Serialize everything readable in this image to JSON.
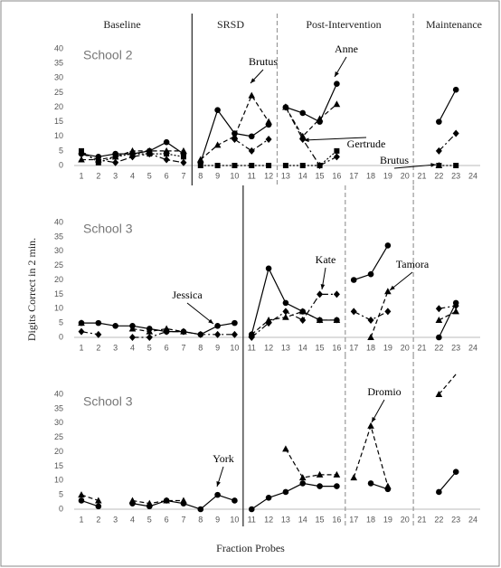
{
  "phase_labels": [
    "Baseline",
    "SRSD",
    "Post-Intervention",
    "Maintenance"
  ],
  "ylabel": "Digits Correct in 2 min.",
  "xlabel": "Fraction Probes",
  "chart_data": [
    {
      "type": "line",
      "title": "School 2",
      "x": [
        1,
        2,
        3,
        4,
        5,
        6,
        7,
        8,
        9,
        10,
        11,
        12,
        13,
        14,
        15,
        16,
        17,
        18,
        19,
        20,
        21,
        22,
        23,
        24
      ],
      "ylim": [
        0,
        40
      ],
      "yticks": [
        0,
        5,
        10,
        15,
        20,
        25,
        30,
        35,
        40
      ],
      "phase_lines": [
        7.5,
        12.5,
        20.5
      ],
      "annotations": [
        "Brutus",
        "Anne",
        "Gertrude",
        "Brutus"
      ],
      "series": [
        {
          "marker": "circle",
          "dash": "solid",
          "color": "#000",
          "values": [
            4,
            3,
            4,
            4,
            5,
            8,
            4,
            1,
            19,
            11,
            10,
            14,
            20,
            18,
            15,
            28,
            null,
            null,
            null,
            null,
            null,
            15,
            26,
            null
          ]
        },
        {
          "marker": "triangle",
          "dash": "dashed",
          "color": "#000",
          "values": [
            2,
            2,
            3,
            5,
            5,
            5,
            5,
            2,
            7,
            10,
            24,
            15,
            20,
            10,
            16,
            21,
            null,
            null,
            null,
            null,
            null,
            0,
            null,
            null
          ]
        },
        {
          "marker": "diamond",
          "dash": "dashdot",
          "color": "#000",
          "values": [
            4,
            2,
            1,
            3,
            4,
            2,
            1,
            null,
            null,
            9,
            5,
            9,
            20,
            9,
            0,
            3,
            null,
            null,
            null,
            null,
            null,
            5,
            11,
            null
          ]
        },
        {
          "marker": "square",
          "dash": "dotted",
          "color": "#000",
          "values": [
            5,
            1,
            3,
            4,
            4,
            4,
            3,
            0,
            0,
            0,
            0,
            0,
            0,
            0,
            0,
            5,
            null,
            null,
            null,
            null,
            null,
            0,
            0,
            null
          ]
        }
      ]
    },
    {
      "type": "line",
      "title": "School 3",
      "x": [
        1,
        2,
        3,
        4,
        5,
        6,
        7,
        8,
        9,
        10,
        11,
        12,
        13,
        14,
        15,
        16,
        17,
        18,
        19,
        20,
        21,
        22,
        23,
        24
      ],
      "ylim": [
        0,
        40
      ],
      "yticks": [
        0,
        5,
        10,
        15,
        20,
        25,
        30,
        35,
        40
      ],
      "phase_lines": [
        10.5,
        16.5,
        20.5
      ],
      "annotations": [
        "Jessica",
        "Kate",
        "Tamora"
      ],
      "series": [
        {
          "marker": "circle",
          "dash": "solid",
          "color": "#000",
          "values": [
            5,
            5,
            4,
            4,
            3,
            2,
            2,
            1,
            4,
            5,
            1,
            24,
            12,
            9,
            6,
            6,
            20,
            22,
            32,
            null,
            null,
            0,
            12,
            null
          ]
        },
        {
          "marker": "triangle",
          "dash": "dashed",
          "color": "#000",
          "values": [
            5,
            null,
            null,
            3,
            2,
            3,
            2,
            null,
            null,
            null,
            1,
            6,
            7,
            9,
            6,
            6,
            null,
            0,
            16,
            null,
            null,
            6,
            9,
            null
          ]
        },
        {
          "marker": "diamond",
          "dash": "dashdot",
          "color": "#000",
          "values": [
            2,
            1,
            null,
            0,
            0,
            2,
            2,
            1,
            1,
            1,
            0,
            5,
            9,
            6,
            15,
            15,
            9,
            6,
            9,
            null,
            null,
            10,
            11,
            null
          ]
        }
      ]
    },
    {
      "type": "line",
      "title": "School 3",
      "x": [
        1,
        2,
        3,
        4,
        5,
        6,
        7,
        8,
        9,
        10,
        11,
        12,
        13,
        14,
        15,
        16,
        17,
        18,
        19,
        20,
        21,
        22,
        23,
        24
      ],
      "ylim": [
        0,
        40
      ],
      "yticks": [
        0,
        5,
        10,
        15,
        20,
        25,
        30,
        35,
        40
      ],
      "phase_lines": [
        10.5,
        16.5,
        20.5
      ],
      "annotations": [
        "York",
        "Dromio"
      ],
      "series": [
        {
          "marker": "circle",
          "dash": "solid",
          "color": "#000",
          "values": [
            3,
            1,
            null,
            2,
            1,
            3,
            2,
            0,
            5,
            3,
            0,
            4,
            6,
            9,
            8,
            8,
            null,
            9,
            7,
            null,
            null,
            6,
            13,
            null
          ]
        },
        {
          "marker": "triangle",
          "dash": "dashed",
          "color": "#000",
          "values": [
            5,
            3,
            null,
            3,
            2,
            3,
            3,
            null,
            null,
            null,
            null,
            null,
            21,
            11,
            12,
            12,
            11,
            29,
            8,
            null,
            null,
            40,
            47,
            null
          ]
        }
      ]
    }
  ]
}
